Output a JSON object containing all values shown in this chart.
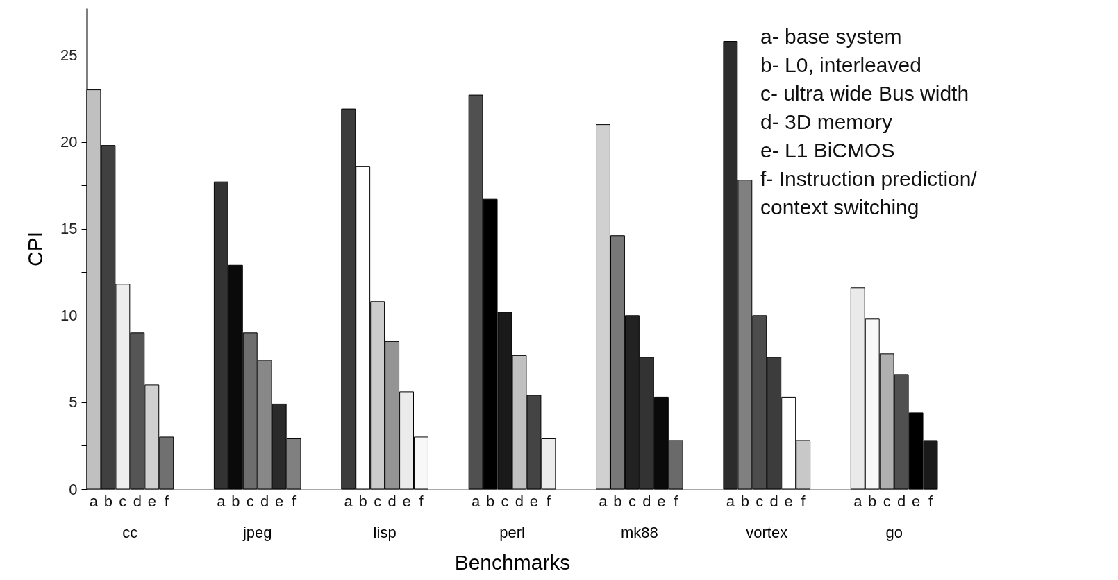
{
  "chart_data": {
    "type": "bar",
    "xlabel": "Benchmarks",
    "ylabel": "CPI",
    "categories": [
      "cc",
      "jpeg",
      "lisp",
      "perl",
      "mk88",
      "vortex",
      "go"
    ],
    "series": [
      {
        "name": "a",
        "values": [
          23.0,
          17.7,
          21.9,
          22.7,
          21.0,
          25.8,
          11.6
        ],
        "colors": [
          "#c0c0c0",
          "#333333",
          "#3c3c3c",
          "#505050",
          "#d0d0d0",
          "#2c2c2c",
          "#eaeaea"
        ]
      },
      {
        "name": "b",
        "values": [
          19.8,
          12.9,
          18.6,
          16.7,
          14.6,
          17.8,
          9.8
        ],
        "colors": [
          "#404040",
          "#0a0a0a",
          "#ffffff",
          "#000000",
          "#787878",
          "#808080",
          "#f8f8f8"
        ]
      },
      {
        "name": "c",
        "values": [
          11.8,
          9.0,
          10.8,
          10.2,
          10.0,
          10.0,
          7.8
        ],
        "colors": [
          "#eeeeee",
          "#6e6e6e",
          "#cccccc",
          "#1a1a1a",
          "#222222",
          "#4c4c4c",
          "#b0b0b0"
        ]
      },
      {
        "name": "d",
        "values": [
          9.0,
          7.4,
          8.5,
          7.7,
          7.6,
          7.6,
          6.6
        ],
        "colors": [
          "#555555",
          "#888888",
          "#949494",
          "#c0c0c0",
          "#333333",
          "#3c3c3c",
          "#505050"
        ]
      },
      {
        "name": "e",
        "values": [
          6.0,
          4.9,
          5.6,
          5.4,
          5.3,
          5.3,
          4.4
        ],
        "colors": [
          "#d0d0d0",
          "#2a2a2a",
          "#ebebeb",
          "#444444",
          "#0a0a0a",
          "#ffffff",
          "#000000"
        ]
      },
      {
        "name": "f",
        "values": [
          3.0,
          2.9,
          3.0,
          2.9,
          2.8,
          2.8,
          2.8
        ],
        "colors": [
          "#707070",
          "#808080",
          "#f8f8f8",
          "#ececec",
          "#6a6a6a",
          "#c8c8c8",
          "#1a1a1a"
        ]
      }
    ],
    "ylim": [
      0,
      27.7
    ],
    "yticks": [
      0,
      {
        "value": 2.5,
        "label": null
      },
      5,
      {
        "value": 7.5,
        "label": null
      },
      10,
      {
        "value": 12.5,
        "label": null
      },
      15,
      {
        "value": 17.5,
        "label": null
      },
      20,
      {
        "value": 22.5,
        "label": null
      },
      25
    ],
    "annotations": [
      "a- base system",
      "b- L0, interleaved",
      "c- ultra wide Bus width",
      "d- 3D memory",
      "e- L1 BiCMOS",
      "f- Instruction prediction/",
      "context switching"
    ]
  }
}
